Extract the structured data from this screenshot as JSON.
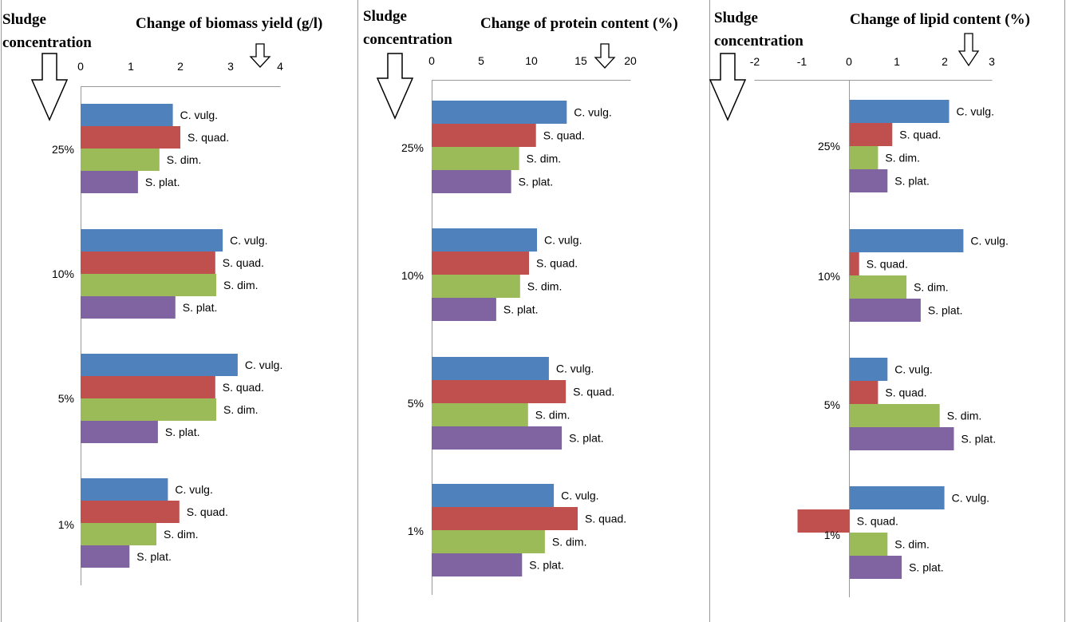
{
  "panel_heading": [
    "Sludge",
    "concentration"
  ],
  "colors": {
    "C. vulg.": "#4f81bd",
    "S. quad.": "#c0504d",
    "S. dim.": "#9bbb59",
    "S. plat.": "#8064a2"
  },
  "chart_data": [
    {
      "type": "bar",
      "orientation": "horizontal",
      "title": "Change of biomass yield (g/l)",
      "ylabel": "Sludge concentration",
      "categories": [
        "25%",
        "10%",
        "5%",
        "1%"
      ],
      "xlim": [
        0,
        4
      ],
      "ticks": [
        0,
        1,
        2,
        3,
        4
      ],
      "series": [
        {
          "name": "C. vulg.",
          "values": [
            1.85,
            2.85,
            3.15,
            1.75
          ]
        },
        {
          "name": "S. quad.",
          "values": [
            2.0,
            2.7,
            2.7,
            1.98
          ]
        },
        {
          "name": "S. dim.",
          "values": [
            1.58,
            2.72,
            2.72,
            1.52
          ]
        },
        {
          "name": "S. plat.",
          "values": [
            1.15,
            1.9,
            1.55,
            0.98
          ]
        }
      ]
    },
    {
      "type": "bar",
      "orientation": "horizontal",
      "title": "Change of protein content (%)",
      "ylabel": "Sludge concentration",
      "categories": [
        "25%",
        "10%",
        "5%",
        "1%"
      ],
      "xlim": [
        0,
        20
      ],
      "ticks": [
        0,
        5,
        10,
        15,
        20
      ],
      "series": [
        {
          "name": "C. vulg.",
          "values": [
            13.6,
            10.6,
            11.8,
            12.3
          ]
        },
        {
          "name": "S. quad.",
          "values": [
            10.5,
            9.8,
            13.5,
            14.7
          ]
        },
        {
          "name": "S. dim.",
          "values": [
            8.8,
            8.9,
            9.7,
            11.4
          ]
        },
        {
          "name": "S. plat.",
          "values": [
            8.0,
            6.5,
            13.1,
            9.1
          ]
        }
      ]
    },
    {
      "type": "bar",
      "orientation": "horizontal",
      "title": "Change of lipid content (%)",
      "ylabel": "Sludge concentration",
      "categories": [
        "25%",
        "10%",
        "5%",
        "1%"
      ],
      "xlim": [
        -2,
        3
      ],
      "ticks": [
        -2,
        -1,
        0,
        1,
        2,
        3
      ],
      "series": [
        {
          "name": "C. vulg.",
          "values": [
            2.1,
            2.4,
            0.8,
            2.0
          ]
        },
        {
          "name": "S. quad.",
          "values": [
            0.9,
            0.2,
            0.6,
            -1.1
          ]
        },
        {
          "name": "S. dim.",
          "values": [
            0.6,
            1.2,
            1.9,
            0.8
          ]
        },
        {
          "name": "S. plat.",
          "values": [
            0.8,
            1.5,
            2.2,
            1.1
          ]
        }
      ]
    }
  ]
}
